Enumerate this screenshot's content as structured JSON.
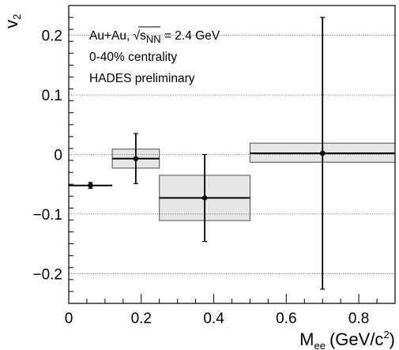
{
  "chart_data": {
    "type": "scatter",
    "title": "",
    "xlabel": "M",
    "xlabel_sub": "ee",
    "xlabel_unit": "(GeV/c",
    "xlabel_unit_sup": "2",
    "xlabel_unit_end": ")",
    "ylabel": "v",
    "ylabel_sub": "2",
    "xlim": [
      0,
      0.9
    ],
    "ylim": [
      -0.25,
      0.25
    ],
    "x_ticks": [
      0,
      0.2,
      0.4,
      0.6,
      0.8
    ],
    "x_tick_labels": [
      "0",
      "0.2",
      "0.4",
      "0.6",
      "0.8"
    ],
    "y_gridlines": [
      -0.2,
      -0.1,
      0,
      0.1,
      0.2
    ],
    "y_tick_labels": [
      {
        "value": 0.2,
        "label": "0.2"
      },
      {
        "value": 0.1,
        "label": "0.1"
      },
      {
        "value": 0,
        "label": "0"
      },
      {
        "value": -0.1,
        "label": "−0.1"
      },
      {
        "value": -0.2,
        "label": "−0.2"
      }
    ],
    "grid": "horizontal dotted",
    "annotations": {
      "collision": "Au+Au, ",
      "sqrt_symbol": "√",
      "s_letter": "s",
      "s_subscript": "NN",
      "energy": " = 2.4 GeV",
      "centrality": "0-40% centrality",
      "experiment": "HADES preliminary"
    },
    "points": [
      {
        "x": 0.06,
        "xerr_low": 0.06,
        "xerr_high": 0.06,
        "y": -0.052,
        "yerr": 0.005,
        "sys_box": null
      },
      {
        "x": 0.185,
        "xerr_low": 0.065,
        "xerr_high": 0.065,
        "y": -0.007,
        "yerr": 0.042,
        "sys_box": {
          "x0": 0.12,
          "x1": 0.25,
          "y0": -0.023,
          "y1": 0.009
        }
      },
      {
        "x": 0.375,
        "xerr_low": 0.125,
        "xerr_high": 0.125,
        "y": -0.073,
        "yerr": 0.073,
        "sys_box": {
          "x0": 0.25,
          "x1": 0.5,
          "y0": -0.111,
          "y1": -0.035
        }
      },
      {
        "x": 0.7,
        "xerr_low": 0.2,
        "xerr_high": 0.2,
        "y": 0.002,
        "yerr": 0.228,
        "sys_box": {
          "x0": 0.5,
          "x1": 0.9,
          "y0": -0.013,
          "y1": 0.019
        }
      }
    ],
    "colors": {
      "marker": "#000000",
      "sys_box_fill": "#e6e6e6",
      "sys_box_stroke": "#4d4d4d",
      "grid": "#555555"
    }
  }
}
